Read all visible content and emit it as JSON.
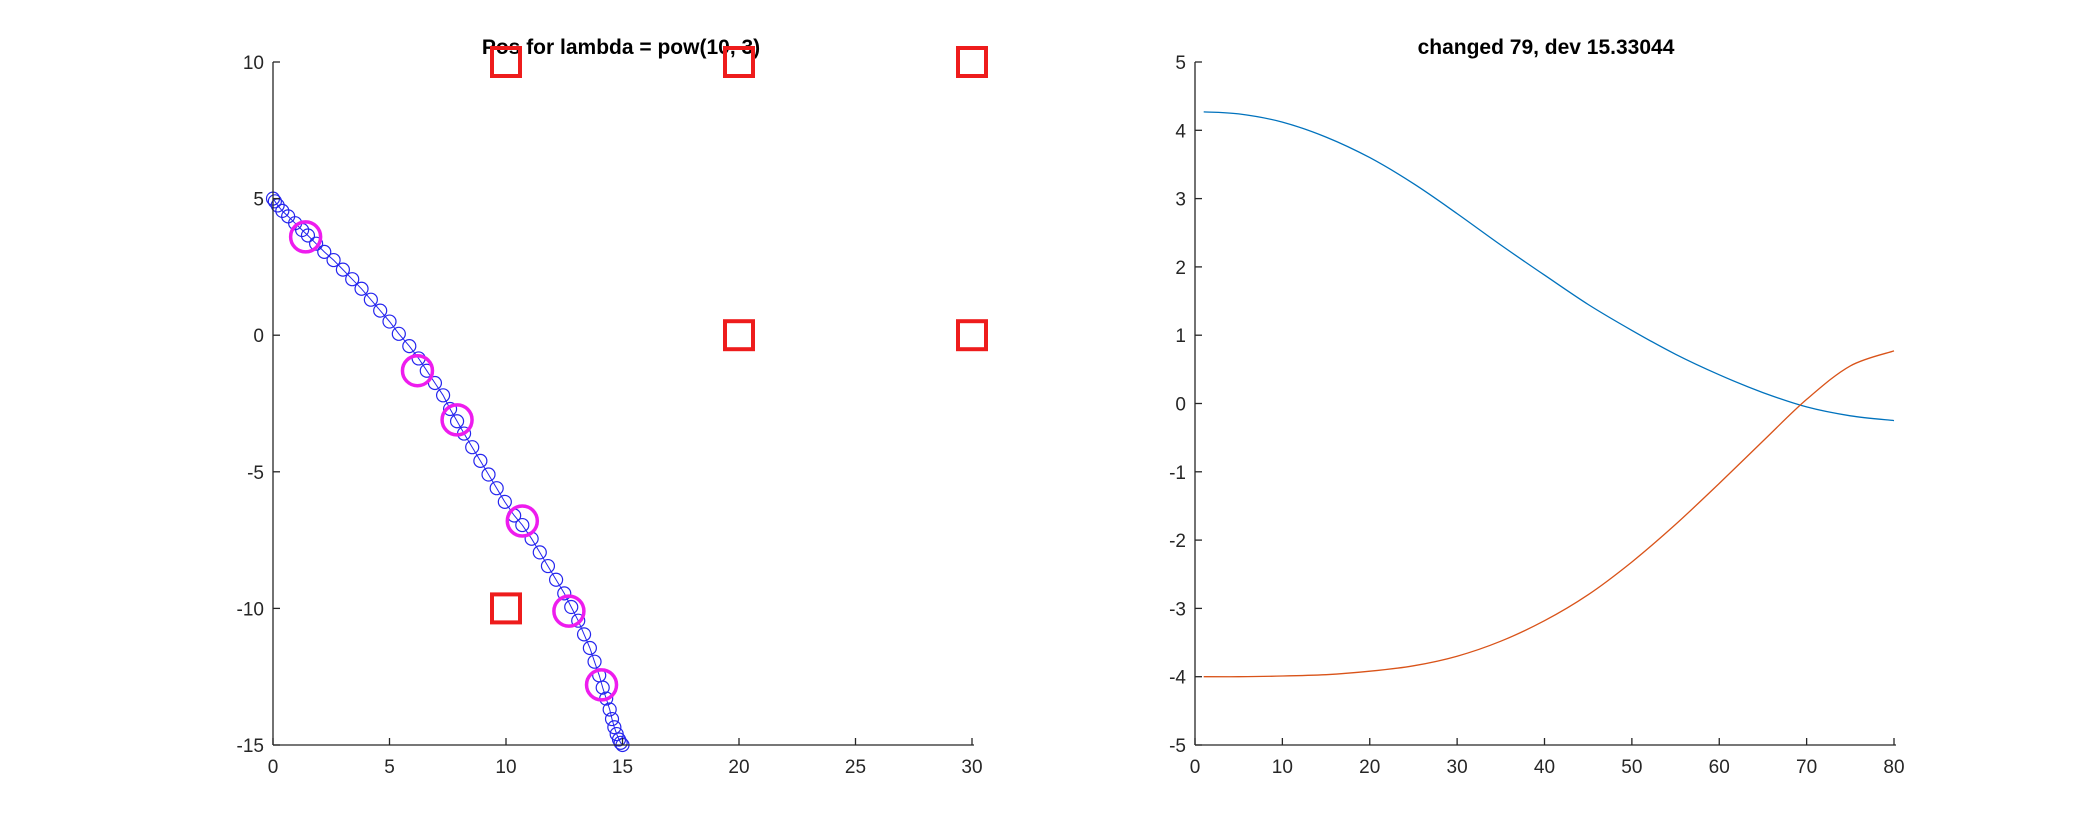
{
  "chart_data": [
    {
      "type": "scatter",
      "title": "Pos for lambda = pow(10, 3)",
      "xlim": [
        0,
        30
      ],
      "ylim": [
        -15,
        10
      ],
      "xticks": [
        "0",
        "5",
        "10",
        "15",
        "20",
        "25",
        "30"
      ],
      "yticks": [
        "10",
        "5",
        "0",
        "-5",
        "-10",
        "-15"
      ],
      "grid": false,
      "series": [
        {
          "marker": "square",
          "color": "#ee1c1c",
          "points": [
            [
              10,
              10
            ],
            [
              20,
              10
            ],
            [
              30,
              10
            ],
            [
              20,
              0
            ],
            [
              30,
              0
            ],
            [
              10,
              -10
            ]
          ]
        },
        {
          "marker": "circle",
          "color": "#2525ee",
          "line": true,
          "points": [
            [
              0,
              5
            ],
            [
              0.08,
              4.9
            ],
            [
              0.2,
              4.75
            ],
            [
              0.4,
              4.55
            ],
            [
              0.65,
              4.35
            ],
            [
              0.95,
              4.1
            ],
            [
              1.25,
              3.85
            ],
            [
              1.5,
              3.65
            ],
            [
              1.85,
              3.35
            ],
            [
              2.2,
              3.05
            ],
            [
              2.6,
              2.75
            ],
            [
              3.0,
              2.4
            ],
            [
              3.4,
              2.05
            ],
            [
              3.8,
              1.7
            ],
            [
              4.2,
              1.3
            ],
            [
              4.6,
              0.9
            ],
            [
              5.0,
              0.5
            ],
            [
              5.4,
              0.05
            ],
            [
              5.85,
              -0.4
            ],
            [
              6.25,
              -0.85
            ],
            [
              6.6,
              -1.3
            ],
            [
              6.95,
              -1.75
            ],
            [
              7.3,
              -2.2
            ],
            [
              7.6,
              -2.7
            ],
            [
              7.9,
              -3.15
            ],
            [
              8.2,
              -3.6
            ],
            [
              8.55,
              -4.1
            ],
            [
              8.9,
              -4.6
            ],
            [
              9.25,
              -5.1
            ],
            [
              9.6,
              -5.6
            ],
            [
              9.95,
              -6.1
            ],
            [
              10.35,
              -6.6
            ],
            [
              10.7,
              -6.95
            ],
            [
              11.1,
              -7.45
            ],
            [
              11.45,
              -7.95
            ],
            [
              11.8,
              -8.45
            ],
            [
              12.15,
              -8.95
            ],
            [
              12.5,
              -9.45
            ],
            [
              12.8,
              -9.95
            ],
            [
              13.1,
              -10.45
            ],
            [
              13.35,
              -10.95
            ],
            [
              13.6,
              -11.45
            ],
            [
              13.8,
              -11.95
            ],
            [
              14.0,
              -12.45
            ],
            [
              14.15,
              -12.9
            ],
            [
              14.3,
              -13.3
            ],
            [
              14.45,
              -13.7
            ],
            [
              14.55,
              -14.05
            ],
            [
              14.65,
              -14.35
            ],
            [
              14.75,
              -14.6
            ],
            [
              14.85,
              -14.8
            ],
            [
              14.92,
              -14.92
            ],
            [
              15,
              -15
            ]
          ]
        },
        {
          "marker": "circle-large",
          "color": "#ee1cee",
          "points": [
            [
              1.4,
              3.6
            ],
            [
              6.2,
              -1.3
            ],
            [
              7.9,
              -3.1
            ],
            [
              10.7,
              -6.8
            ],
            [
              12.7,
              -10.1
            ],
            [
              14.1,
              -12.8
            ]
          ]
        }
      ]
    },
    {
      "type": "line",
      "title": "changed 79, dev 15.33044",
      "xlim": [
        0,
        80
      ],
      "ylim": [
        -5,
        5
      ],
      "xticks": [
        "0",
        "10",
        "20",
        "30",
        "40",
        "50",
        "60",
        "70",
        "80"
      ],
      "yticks": [
        "5",
        "4",
        "3",
        "2",
        "1",
        "0",
        "-1",
        "-2",
        "-3",
        "-4",
        "-5"
      ],
      "grid": false,
      "x": [
        1,
        5,
        10,
        15,
        20,
        25,
        30,
        35,
        40,
        45,
        50,
        55,
        60,
        65,
        70,
        75,
        80
      ],
      "series": [
        {
          "color": "#0072bd",
          "values": [
            4.27,
            4.24,
            4.12,
            3.9,
            3.6,
            3.22,
            2.78,
            2.32,
            1.88,
            1.45,
            1.07,
            0.72,
            0.42,
            0.16,
            -0.05,
            -0.18,
            -0.25
          ]
        },
        {
          "color": "#d95319",
          "values": [
            -4.0,
            -4.0,
            -3.99,
            -3.97,
            -3.92,
            -3.84,
            -3.7,
            -3.48,
            -3.18,
            -2.8,
            -2.32,
            -1.77,
            -1.17,
            -0.55,
            0.06,
            0.55,
            0.77
          ]
        }
      ]
    }
  ]
}
